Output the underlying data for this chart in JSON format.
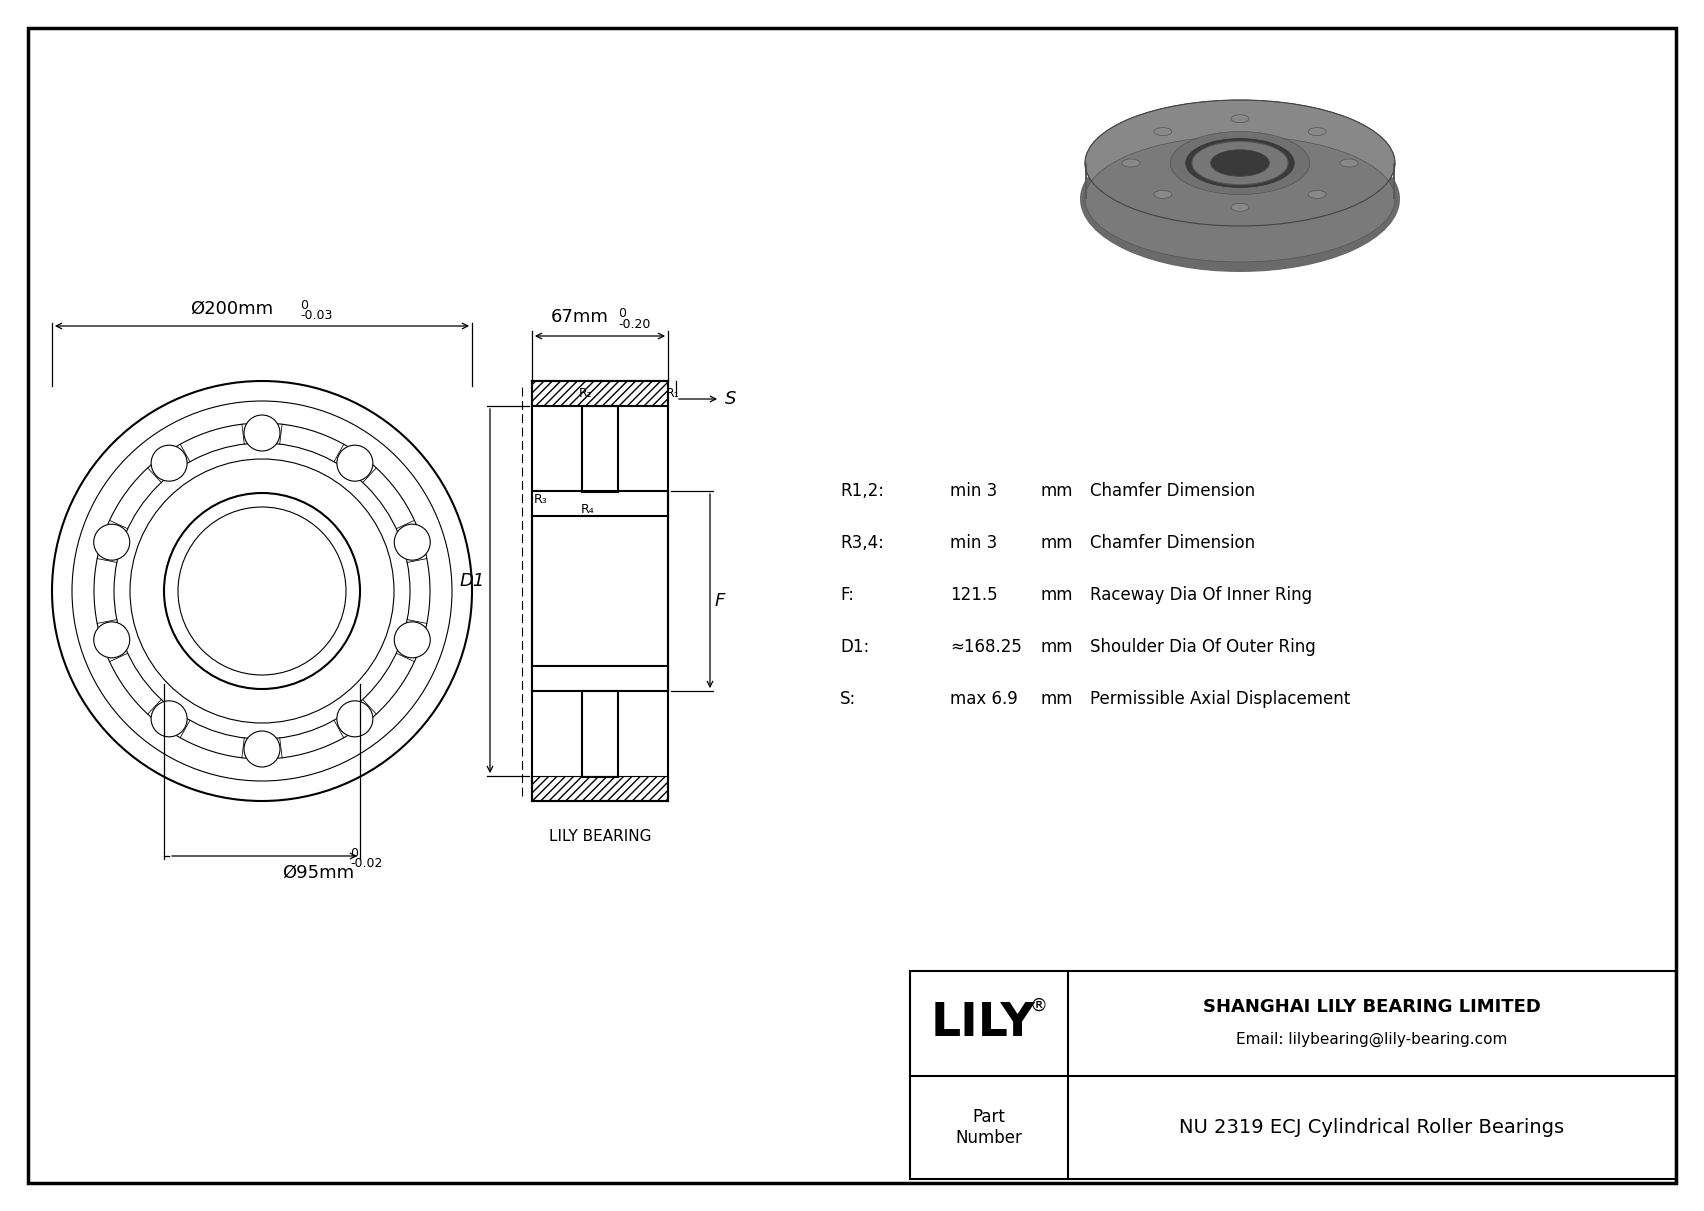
{
  "bg_color": "#ffffff",
  "line_color": "#000000",
  "title": "NU 2319 ECJ Cylindrical Roller Bearings",
  "company": "SHANGHAI LILY BEARING LIMITED",
  "email": "Email: lilybearing@lily-bearing.com",
  "part_label": "Part\nNumber",
  "specs": [
    {
      "label": "R1,2:",
      "value": "min 3",
      "unit": "mm",
      "desc": "Chamfer Dimension"
    },
    {
      "label": "R3,4:",
      "value": "min 3",
      "unit": "mm",
      "desc": "Chamfer Dimension"
    },
    {
      "label": "F:",
      "value": "121.5",
      "unit": "mm",
      "desc": "Raceway Dia Of Inner Ring"
    },
    {
      "label": "D1:",
      "value": "≈168.25",
      "unit": "mm",
      "desc": "Shoulder Dia Of Outer Ring"
    },
    {
      "label": "S:",
      "value": "max 6.9",
      "unit": "mm",
      "desc": "Permissible Axial Displacement"
    }
  ],
  "dim_outer_main": "Ø200mm",
  "dim_outer_tol_top": "0",
  "dim_outer_tol_bot": "-0.03",
  "dim_inner_main": "Ø95mm",
  "dim_inner_tol_top": "0",
  "dim_inner_tol_bot": "-0.02",
  "dim_width_main": "67mm",
  "dim_width_tol_top": "0",
  "dim_width_tol_bot": "-0.20",
  "lily_bearing_label": "LILY BEARING",
  "img_gray1": "#7a7a7a",
  "img_gray2": "#5a5a5a",
  "img_gray3": "#4a4a4a",
  "img_gray4": "#6a6a6a",
  "img_gray5": "#909090"
}
